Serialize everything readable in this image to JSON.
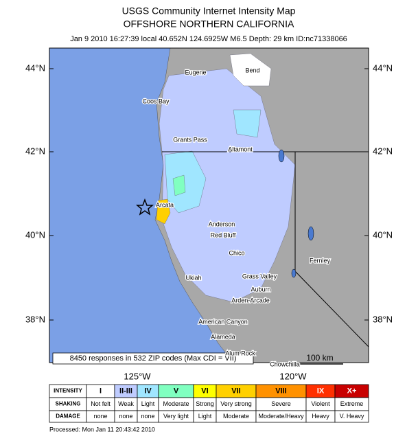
{
  "header": {
    "title": "USGS Community Internet Intensity Map",
    "subtitle": "OFFSHORE NORTHERN CALIFORNIA",
    "event": "Jan 9 2010 16:27:39 local 40.652N 124.6925W M6.5 Depth: 29 km ID:nc71338066"
  },
  "map": {
    "lat_labels": [
      "44°N",
      "42°N",
      "40°N",
      "38°N"
    ],
    "lon_labels": [
      "125°W",
      "120°W"
    ],
    "cities": [
      "Eugene",
      "Bend",
      "Coos Bay",
      "Grants Pass",
      "Altamont",
      "Arcata",
      "Anderson",
      "Red Bluff",
      "Chico",
      "Fernley",
      "Ukiah",
      "Grass Valley",
      "Auburn",
      "Arden-Arcade",
      "American Canyon",
      "Alameda",
      "Alum Rock",
      "Chowchilla"
    ],
    "responses_note": "8450 responses in 532 ZIP codes (Max CDI = VII)",
    "scale_label": "100 km"
  },
  "legend": {
    "row_labels": [
      "INTENSITY",
      "SHAKING",
      "DAMAGE"
    ],
    "columns": [
      {
        "intensity": "I",
        "shaking": "Not felt",
        "damage": "none",
        "color": "#ffffff"
      },
      {
        "intensity": "II-III",
        "shaking": "Weak",
        "damage": "none",
        "color": "#bfccff"
      },
      {
        "intensity": "IV",
        "shaking": "Light",
        "damage": "none",
        "color": "#a0e6ff"
      },
      {
        "intensity": "V",
        "shaking": "Moderate",
        "damage": "Very light",
        "color": "#80ffc0"
      },
      {
        "intensity": "VI",
        "shaking": "Strong",
        "damage": "Light",
        "color": "#ffff00"
      },
      {
        "intensity": "VII",
        "shaking": "Very strong",
        "damage": "Moderate",
        "color": "#ffd000"
      },
      {
        "intensity": "VIII",
        "shaking": "Severe",
        "damage": "Moderate/Heavy",
        "color": "#ff9100"
      },
      {
        "intensity": "IX",
        "shaking": "Violent",
        "damage": "Heavy",
        "color": "#ff3000"
      },
      {
        "intensity": "X+",
        "shaking": "Extreme",
        "damage": "V. Heavy",
        "color": "#c80000"
      }
    ]
  },
  "footer": "Processed: Mon Jan 11 20:43:42 2010"
}
